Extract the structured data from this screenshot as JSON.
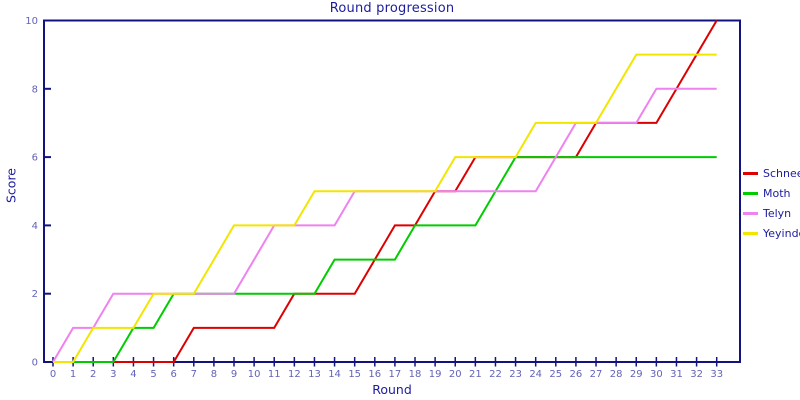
{
  "chart_data": {
    "type": "line",
    "title": "Round progression",
    "xlabel": "Round",
    "ylabel": "Score",
    "rounds": [
      0,
      1,
      2,
      3,
      4,
      5,
      6,
      7,
      8,
      9,
      10,
      11,
      12,
      13,
      14,
      15,
      16,
      17,
      18,
      19,
      20,
      21,
      22,
      23,
      24,
      25,
      26,
      27,
      28,
      29,
      30,
      31,
      32,
      33
    ],
    "ylim": [
      0,
      10
    ],
    "yticks": [
      0,
      2,
      4,
      6,
      8,
      10
    ],
    "grid": false,
    "legend_position": "right",
    "series": [
      {
        "name": "Schnee",
        "color": "#dd0000",
        "values": [
          0,
          0,
          0,
          0,
          0,
          0,
          0,
          1,
          1,
          1,
          1,
          1,
          2,
          2,
          2,
          2,
          3,
          4,
          4,
          5,
          5,
          6,
          6,
          6,
          6,
          6,
          6,
          7,
          7,
          7,
          7,
          8,
          9,
          10
        ]
      },
      {
        "name": "Moth",
        "color": "#00cc00",
        "values": [
          0,
          0,
          0,
          0,
          1,
          1,
          2,
          2,
          2,
          2,
          2,
          2,
          2,
          2,
          3,
          3,
          3,
          3,
          4,
          4,
          4,
          4,
          5,
          6,
          6,
          6,
          6,
          6,
          6,
          6,
          6,
          6,
          6,
          6
        ]
      },
      {
        "name": "Telyn",
        "color": "#ee82ee",
        "values": [
          0,
          1,
          1,
          2,
          2,
          2,
          2,
          2,
          2,
          2,
          3,
          4,
          4,
          4,
          4,
          5,
          5,
          5,
          5,
          5,
          5,
          5,
          5,
          5,
          5,
          6,
          7,
          7,
          7,
          7,
          8,
          8,
          8,
          8
        ]
      },
      {
        "name": "Yeyinde",
        "color": "#f2e500",
        "values": [
          0,
          0,
          1,
          1,
          1,
          2,
          2,
          2,
          3,
          4,
          4,
          4,
          4,
          5,
          5,
          5,
          5,
          5,
          5,
          5,
          6,
          6,
          6,
          6,
          7,
          7,
          7,
          7,
          8,
          9,
          9,
          9,
          9,
          9
        ]
      }
    ]
  },
  "colors": {
    "frame": "#131380",
    "text_primary": "#1c1c9e",
    "tick_label": "#6363b8",
    "background": "#ffffff"
  }
}
